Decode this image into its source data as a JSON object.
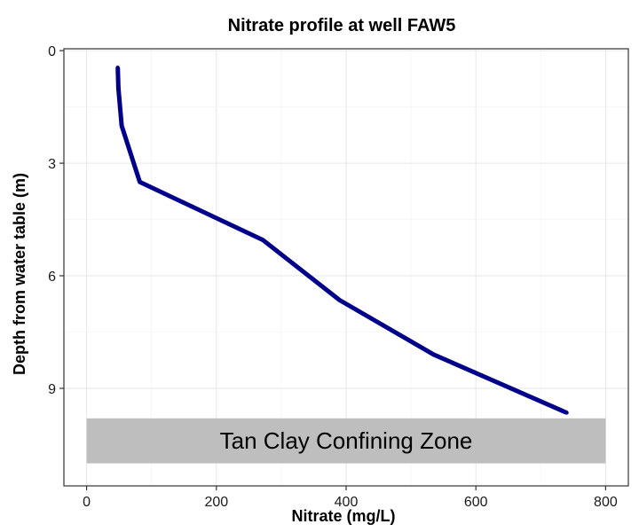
{
  "chart_data": {
    "type": "line",
    "title": "Nitrate profile at well FAW5",
    "xlabel": "Nitrate (mg/L)",
    "ylabel": "Depth from water table (m)",
    "xlim": [
      -35,
      835
    ],
    "ylim": [
      -0.05,
      11.6
    ],
    "y_reversed": true,
    "xticks": [
      0,
      200,
      400,
      600,
      800
    ],
    "xtick_labels": [
      "0",
      "200",
      "400",
      "600",
      "800"
    ],
    "yticks": [
      0,
      3,
      6,
      9
    ],
    "ytick_labels": [
      "0",
      "3",
      "6",
      "9"
    ],
    "grid": true,
    "series": [
      {
        "color": "#00008B",
        "x": [
          48,
          49,
          54,
          82,
          272,
          390,
          535,
          740
        ],
        "y": [
          0.45,
          1.0,
          2.0,
          3.5,
          5.05,
          6.65,
          8.1,
          9.65
        ]
      }
    ],
    "annotations": [
      {
        "type": "rect",
        "label": "Tan Clay Confining Zone",
        "x_range": [
          0,
          800
        ],
        "y_range": [
          9.8,
          11.0
        ],
        "fill": "#BEBEBE"
      }
    ]
  }
}
